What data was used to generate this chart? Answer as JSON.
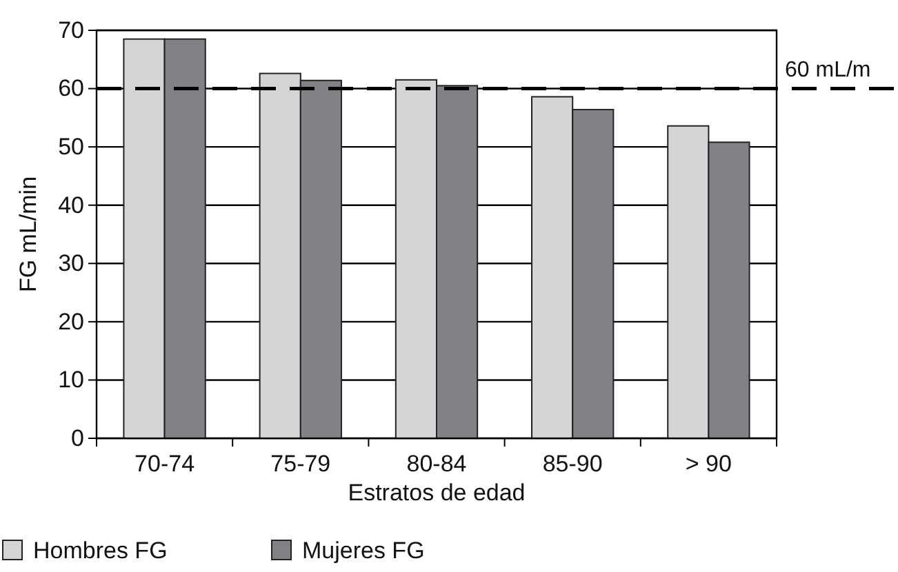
{
  "chart_data": {
    "type": "bar",
    "xlabel": "Estratos de edad",
    "ylabel": "FG mL/min",
    "categories": [
      "70-74",
      "75-79",
      "80-84",
      "85-90",
      "> 90"
    ],
    "series": [
      {
        "name": "Hombres FG",
        "color": "#d4d5d6",
        "values": [
          68.5,
          62.6,
          61.5,
          58.6,
          53.6
        ]
      },
      {
        "name": "Mujeres FG",
        "color": "#818285",
        "values": [
          68.5,
          61.4,
          60.5,
          56.4,
          50.8
        ]
      }
    ],
    "ylim": [
      0,
      70
    ],
    "yticks": [
      0,
      10,
      20,
      30,
      40,
      50,
      60,
      70
    ],
    "grid": "y",
    "legend": "bottom",
    "ref_lines": [
      {
        "axis": "y",
        "value": 60,
        "label": "60 mL/m",
        "line_style": "dashed",
        "color": "#000000"
      }
    ]
  }
}
